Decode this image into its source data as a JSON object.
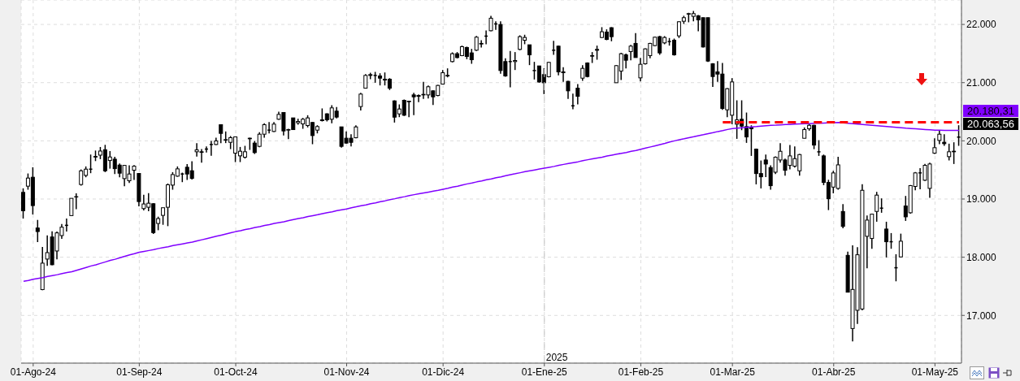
{
  "chart_data": {
    "type": "candlestick",
    "color": "#000000",
    "categories": [
      null,
      null,
      "01-Ago-24",
      null,
      null,
      null,
      null,
      null,
      null,
      null,
      null,
      null,
      null,
      null,
      null,
      null,
      null,
      null,
      null,
      null,
      null,
      null,
      null,
      null,
      "01-Sep-24",
      null,
      null,
      null,
      null,
      null,
      null,
      null,
      null,
      null,
      null,
      null,
      null,
      null,
      null,
      null,
      null,
      null,
      null,
      null,
      "01-Oct-24",
      null,
      null,
      null,
      null,
      null,
      null,
      null,
      null,
      null,
      null,
      null,
      null,
      null,
      null,
      null,
      null,
      null,
      null,
      null,
      null,
      null,
      null,
      "01-Nov-24",
      null,
      null,
      null,
      null,
      null,
      null,
      null,
      null,
      null,
      null,
      null,
      null,
      null,
      null,
      null,
      null,
      null,
      null,
      null,
      "01-Dic-24",
      null,
      null,
      null,
      null,
      null,
      null,
      null,
      null,
      null,
      null,
      null,
      null,
      null,
      null,
      null,
      null,
      null,
      null,
      null,
      null,
      "01-Ene-25",
      null,
      null,
      null,
      null,
      null,
      null,
      null,
      null,
      null,
      null,
      null,
      null,
      null,
      null,
      null,
      null,
      null,
      null,
      null,
      "01-Feb-25",
      null,
      null,
      null,
      null,
      null,
      null,
      null,
      null,
      null,
      null,
      null,
      null,
      null,
      null,
      null,
      null,
      null,
      null,
      "01-Mar-25",
      null,
      null,
      null,
      null,
      null,
      null,
      null,
      null,
      null,
      null,
      null,
      null,
      null,
      null,
      null,
      null,
      null,
      null,
      null,
      null,
      "01-Abr-25",
      null,
      null,
      null,
      null,
      null,
      null,
      null,
      null,
      null,
      null,
      null,
      null,
      null,
      null,
      null,
      null,
      null,
      null,
      null,
      null,
      "01-May-25",
      null,
      null,
      null,
      null,
      null
    ],
    "ohlc": [
      [
        19114,
        19184,
        18664,
        18799
      ],
      [
        19221,
        19439,
        19160,
        19360
      ],
      [
        19374,
        19546,
        18734,
        18887
      ],
      [
        18502,
        18641,
        18260,
        18441
      ],
      [
        17444,
        18177,
        17434,
        17898
      ],
      [
        17968,
        18376,
        17852,
        18079
      ],
      [
        18348,
        18446,
        17861,
        17871
      ],
      [
        18107,
        18441,
        17963,
        18418
      ],
      [
        18372,
        18571,
        18316,
        18516
      ],
      [
        18548,
        18664,
        18441,
        18548
      ],
      [
        18715,
        19012,
        18715,
        19012
      ],
      [
        19035,
        19096,
        18826,
        19040
      ],
      [
        19249,
        19508,
        19230,
        19485
      ],
      [
        19406,
        19560,
        19374,
        19513
      ],
      [
        19513,
        19764,
        19444,
        19513
      ],
      [
        19731,
        19833,
        19652,
        19722
      ],
      [
        19754,
        19894,
        19685,
        19824
      ],
      [
        19847,
        19931,
        19462,
        19485
      ],
      [
        19662,
        19824,
        19522,
        19722
      ],
      [
        19685,
        19727,
        19430,
        19522
      ],
      [
        19583,
        19611,
        19374,
        19444
      ],
      [
        19351,
        19583,
        19221,
        19578
      ],
      [
        19314,
        19578,
        19277,
        19430
      ],
      [
        19495,
        19583,
        19327,
        19564
      ],
      [
        19439,
        19439,
        18873,
        18956
      ],
      [
        18836,
        19072,
        18803,
        18915
      ],
      [
        18859,
        19100,
        18789,
        18928
      ],
      [
        18919,
        18928,
        18400,
        18423
      ],
      [
        18580,
        18697,
        18464,
        18664
      ],
      [
        18719,
        18850,
        18557,
        18850
      ],
      [
        18859,
        19267,
        18534,
        19244
      ],
      [
        19239,
        19462,
        19160,
        19420
      ],
      [
        19393,
        19560,
        19383,
        19518
      ],
      [
        19430,
        19453,
        19290,
        19430
      ],
      [
        19546,
        19601,
        19327,
        19430
      ],
      [
        19486,
        19649,
        19336,
        19355
      ],
      [
        19812,
        19961,
        19728,
        19844
      ],
      [
        19812,
        19858,
        19625,
        19802
      ],
      [
        19858,
        19905,
        19798,
        19858
      ],
      [
        19937,
        19998,
        19742,
        19937
      ],
      [
        19937,
        20054,
        19928,
        19998
      ],
      [
        20277,
        20277,
        19961,
        20128
      ],
      [
        20012,
        20161,
        19961,
        20021
      ],
      [
        19974,
        20082,
        19858,
        20054
      ],
      [
        19788,
        20068,
        19635,
        20068
      ],
      [
        19742,
        19895,
        19635,
        19821
      ],
      [
        19719,
        19914,
        19695,
        19812
      ],
      [
        20035,
        20054,
        19844,
        20045
      ],
      [
        19961,
        19998,
        19774,
        19798
      ],
      [
        19905,
        20147,
        19891,
        20114
      ],
      [
        20114,
        20300,
        20054,
        20277
      ],
      [
        20184,
        20324,
        20128,
        20184
      ],
      [
        20161,
        20324,
        20152,
        20287
      ],
      [
        20371,
        20501,
        20361,
        20454
      ],
      [
        20487,
        20487,
        20091,
        20170
      ],
      [
        20184,
        20207,
        20030,
        20193
      ],
      [
        20394,
        20394,
        20193,
        20193
      ],
      [
        20310,
        20380,
        20277,
        20333
      ],
      [
        20291,
        20394,
        20207,
        20371
      ],
      [
        20263,
        20440,
        20231,
        20394
      ],
      [
        20315,
        20324,
        19942,
        20091
      ],
      [
        20184,
        20268,
        20128,
        20245
      ],
      [
        20347,
        20557,
        20333,
        20361
      ],
      [
        20464,
        20473,
        20333,
        20361
      ],
      [
        20371,
        20612,
        20300,
        20566
      ],
      [
        20510,
        20580,
        20384,
        20408
      ],
      [
        20240,
        20240,
        19882,
        19905
      ],
      [
        20045,
        20161,
        19951,
        19961
      ],
      [
        20045,
        20114,
        19905,
        19974
      ],
      [
        20053,
        20267,
        20044,
        20239
      ],
      [
        20589,
        20826,
        20523,
        20803
      ],
      [
        20905,
        21147,
        20905,
        21124
      ],
      [
        21124,
        21170,
        21059,
        21138
      ],
      [
        21124,
        21185,
        20998,
        21124
      ],
      [
        21115,
        21161,
        20952,
        21077
      ],
      [
        21059,
        21175,
        20952,
        21045
      ],
      [
        21059,
        21077,
        20873,
        20905
      ],
      [
        20686,
        20696,
        20314,
        20407
      ],
      [
        20463,
        20626,
        20407,
        20547
      ],
      [
        20696,
        20710,
        20426,
        20440
      ],
      [
        20682,
        20686,
        20407,
        20672
      ],
      [
        20789,
        20826,
        20440,
        20756
      ],
      [
        20765,
        20798,
        20663,
        20779
      ],
      [
        20789,
        21012,
        20719,
        20798
      ],
      [
        20789,
        20952,
        20728,
        20929
      ],
      [
        20859,
        20868,
        20616,
        20756
      ],
      [
        20779,
        20961,
        20765,
        20952
      ],
      [
        20975,
        21217,
        20975,
        21170
      ],
      [
        21124,
        21245,
        21091,
        21115
      ],
      [
        21362,
        21520,
        21348,
        21497
      ],
      [
        21497,
        21525,
        21417,
        21431
      ],
      [
        21464,
        21636,
        21455,
        21618
      ],
      [
        21604,
        21618,
        21403,
        21450
      ],
      [
        21511,
        21580,
        21324,
        21394
      ],
      [
        21557,
        21804,
        21543,
        21781
      ],
      [
        21674,
        21729,
        21604,
        21664
      ],
      [
        21799,
        21897,
        21660,
        21799
      ],
      [
        21892,
        22149,
        21883,
        22107
      ],
      [
        22009,
        22055,
        21906,
        22009
      ],
      [
        21999,
        22055,
        21152,
        21208
      ],
      [
        21362,
        21417,
        21101,
        21115
      ],
      [
        21362,
        21543,
        20919,
        21362
      ],
      [
        21362,
        21525,
        21217,
        21380
      ],
      [
        21571,
        21813,
        21557,
        21790
      ],
      [
        21729,
        21823,
        21660,
        21776
      ],
      [
        21650,
        21650,
        21301,
        21478
      ],
      [
        21208,
        21357,
        21054,
        21208
      ],
      [
        21287,
        21287,
        20998,
        21012
      ],
      [
        21138,
        21245,
        20803,
        20998
      ],
      [
        21101,
        21357,
        21091,
        21348
      ],
      [
        21557,
        21720,
        21478,
        21557
      ],
      [
        21627,
        21636,
        21124,
        21185
      ],
      [
        21171,
        21264,
        21012,
        21185
      ],
      [
        21022,
        21031,
        20719,
        20859
      ],
      [
        20602,
        20812,
        20542,
        20602
      ],
      [
        20905,
        20975,
        20626,
        20765
      ],
      [
        21077,
        21301,
        21031,
        21245
      ],
      [
        21338,
        21348,
        21091,
        21105
      ],
      [
        21464,
        21525,
        21338,
        21455
      ],
      [
        21557,
        21636,
        21394,
        21571
      ],
      [
        21776,
        21953,
        21767,
        21874
      ],
      [
        21869,
        21916,
        21729,
        21743
      ],
      [
        21944,
        21953,
        21711,
        21790
      ],
      [
        20998,
        21301,
        20998,
        21292
      ],
      [
        21199,
        21511,
        21045,
        21497
      ],
      [
        21478,
        21497,
        21245,
        21385
      ],
      [
        21534,
        21650,
        21385,
        21627
      ],
      [
        21674,
        21851,
        21431,
        21431
      ],
      [
        21082,
        21427,
        21022,
        21315
      ],
      [
        21324,
        21590,
        21310,
        21580
      ],
      [
        21464,
        21683,
        21417,
        21674
      ],
      [
        21636,
        21790,
        21627,
        21781
      ],
      [
        21790,
        21804,
        21478,
        21511
      ],
      [
        21683,
        21799,
        21660,
        21776
      ],
      [
        21706,
        21767,
        21636,
        21706
      ],
      [
        21729,
        21757,
        21464,
        21478
      ],
      [
        21804,
        22055,
        21767,
        22046
      ],
      [
        22055,
        22149,
        22009,
        22116
      ],
      [
        22177,
        22200,
        22037,
        22186
      ],
      [
        22139,
        22232,
        22055,
        22186
      ],
      [
        22149,
        22163,
        21883,
        22079
      ],
      [
        22116,
        22116,
        21604,
        21613
      ],
      [
        22116,
        22116,
        21357,
        21371
      ],
      [
        21324,
        21334,
        20928,
        21105
      ],
      [
        21185,
        21371,
        21012,
        21147
      ],
      [
        21147,
        21338,
        20533,
        20556
      ],
      [
        20533,
        20905,
        20407,
        20896
      ],
      [
        20440,
        21077,
        20286,
        21012
      ],
      [
        20286,
        20696,
        20034,
        20360
      ],
      [
        20370,
        20696,
        20183,
        20253
      ],
      [
        20244,
        20486,
        19965,
        20067
      ],
      [
        20230,
        20267,
        19741,
        20207
      ],
      [
        19857,
        19867,
        19252,
        19438
      ],
      [
        19438,
        19662,
        19182,
        19382
      ],
      [
        19671,
        19764,
        19378,
        19601
      ],
      [
        19541,
        19578,
        19159,
        19229
      ],
      [
        19461,
        19732,
        19429,
        19718
      ],
      [
        19671,
        19960,
        19625,
        19820
      ],
      [
        19671,
        19694,
        19401,
        19494
      ],
      [
        19578,
        19927,
        19508,
        19741
      ],
      [
        19564,
        19904,
        19541,
        19694
      ],
      [
        19485,
        19774,
        19401,
        19764
      ],
      [
        20044,
        20230,
        20044,
        20193
      ],
      [
        20207,
        20286,
        20174,
        20267
      ],
      [
        20267,
        20276,
        19857,
        19927
      ],
      [
        19811,
        20011,
        19741,
        19811
      ],
      [
        19741,
        19764,
        19238,
        19285
      ],
      [
        19285,
        19331,
        18810,
        19005
      ],
      [
        19205,
        19485,
        19098,
        19448
      ],
      [
        19182,
        19727,
        19159,
        19587
      ],
      [
        18786,
        18912,
        18497,
        18530
      ],
      [
        18032,
        18097,
        17399,
        17399
      ],
      [
        16775,
        18205,
        16552,
        17446
      ],
      [
        17088,
        18173,
        16855,
        18042
      ],
      [
        17111,
        19253,
        17088,
        19150
      ],
      [
        18359,
        18717,
        17809,
        18638
      ],
      [
        18322,
        18750,
        18145,
        18740
      ],
      [
        18787,
        19123,
        18610,
        19067
      ],
      [
        18843,
        19011,
        18764,
        18843
      ],
      [
        18484,
        18610,
        17996,
        18266
      ],
      [
        18266,
        18415,
        18145,
        18266
      ],
      [
        17819,
        18051,
        17586,
        17819
      ],
      [
        18005,
        18405,
        17996,
        18275
      ],
      [
        18880,
        19053,
        18624,
        18694
      ],
      [
        18764,
        19239,
        18750,
        19230
      ],
      [
        19216,
        19463,
        19150,
        19449
      ],
      [
        19449,
        19532,
        19169,
        19449
      ],
      [
        19323,
        19602,
        19309,
        19579
      ],
      [
        19183,
        19626,
        19020,
        19602
      ],
      [
        19789,
        20045,
        19775,
        19882
      ],
      [
        20007,
        20184,
        19942,
        20114
      ],
      [
        19975,
        20114,
        19914,
        19951
      ],
      [
        19728,
        19951,
        19663,
        19812
      ],
      [
        19812,
        19975,
        19602,
        19821
      ],
      [
        20064,
        20268,
        19914,
        20064
      ]
    ],
    "series": [
      {
        "type": "line",
        "color": "#8000ff",
        "values": [
          17585,
          17600,
          17620,
          17635,
          17650,
          17670,
          17685,
          17700,
          17720,
          17735,
          17750,
          17775,
          17800,
          17825,
          17850,
          17870,
          17895,
          17920,
          17945,
          17965,
          17990,
          18015,
          18040,
          18060,
          18085,
          18100,
          18115,
          18130,
          18150,
          18165,
          18180,
          18200,
          18215,
          18230,
          18245,
          18260,
          18280,
          18300,
          18320,
          18340,
          18360,
          18380,
          18400,
          18420,
          18440,
          18455,
          18475,
          18490,
          18510,
          18525,
          18545,
          18560,
          18580,
          18595,
          18610,
          18630,
          18647,
          18665,
          18680,
          18700,
          18715,
          18730,
          18750,
          18765,
          18780,
          18800,
          18815,
          18830,
          18850,
          18866,
          18885,
          18900,
          18920,
          18935,
          18955,
          18970,
          18990,
          19005,
          19025,
          19040,
          19060,
          19075,
          19090,
          19105,
          19120,
          19135,
          19150,
          19168,
          19185,
          19205,
          19220,
          19240,
          19260,
          19275,
          19295,
          19310,
          19330,
          19345,
          19365,
          19380,
          19400,
          19420,
          19435,
          19452,
          19470,
          19485,
          19500,
          19515,
          19531,
          19545,
          19560,
          19580,
          19595,
          19610,
          19625,
          19640,
          19660,
          19675,
          19690,
          19705,
          19720,
          19740,
          19755,
          19770,
          19785,
          19800,
          19820,
          19834,
          19855,
          19875,
          19895,
          19915,
          19935,
          19955,
          19980,
          20000,
          20020,
          20035,
          20055,
          20070,
          20090,
          20105,
          20125,
          20140,
          20160,
          20175,
          20195,
          20210,
          20217,
          20225,
          20232,
          20240,
          20245,
          20252,
          20260,
          20267,
          20270,
          20275,
          20280,
          20282,
          20286,
          20290,
          20293,
          20296,
          20300,
          20303,
          20306,
          20309,
          20312,
          20315,
          20308,
          20301,
          20295,
          20288,
          20281,
          20275,
          20268,
          20261,
          20254,
          20246,
          20239,
          20232,
          20225,
          20217,
          20211,
          20206,
          20200,
          20195,
          20189,
          20184,
          20182,
          20181,
          20181,
          20180,
          20180
        ]
      },
      {
        "type": "line",
        "color": "#ff0000",
        "line_style": "dashed",
        "values": [
          null,
          null,
          null,
          null,
          null,
          null,
          null,
          null,
          null,
          null,
          null,
          null,
          null,
          null,
          null,
          null,
          null,
          null,
          null,
          null,
          null,
          null,
          null,
          null,
          null,
          null,
          null,
          null,
          null,
          null,
          null,
          null,
          null,
          null,
          null,
          null,
          null,
          null,
          null,
          null,
          null,
          null,
          null,
          null,
          null,
          null,
          null,
          null,
          null,
          null,
          null,
          null,
          null,
          null,
          null,
          null,
          null,
          null,
          null,
          null,
          null,
          null,
          null,
          null,
          null,
          null,
          null,
          null,
          null,
          null,
          null,
          null,
          null,
          null,
          null,
          null,
          null,
          null,
          null,
          null,
          null,
          null,
          null,
          null,
          null,
          null,
          null,
          null,
          null,
          null,
          null,
          null,
          null,
          null,
          null,
          null,
          null,
          null,
          null,
          null,
          null,
          null,
          null,
          null,
          null,
          null,
          null,
          null,
          null,
          null,
          null,
          null,
          null,
          null,
          null,
          null,
          null,
          null,
          null,
          null,
          null,
          null,
          null,
          null,
          null,
          null,
          null,
          null,
          null,
          null,
          null,
          null,
          null,
          null,
          null,
          null,
          null,
          null,
          null,
          null,
          null,
          null,
          null,
          null,
          null,
          20320,
          20320,
          20320,
          20320,
          20320,
          20320,
          20320,
          20320,
          20320,
          20320,
          20320,
          20320,
          20320,
          20320,
          20320,
          20320,
          20320,
          20320,
          20320,
          20320,
          20320,
          20320,
          20320,
          20320,
          20320,
          20320,
          20320,
          20320,
          20320,
          20320,
          20320,
          20320,
          20320,
          20320,
          20320,
          20320,
          20320,
          20320,
          20320,
          20320,
          20320,
          20320,
          20320,
          20320,
          20320,
          20320,
          20320,
          20320,
          20320,
          20320
        ]
      }
    ],
    "ylim": [
      16180,
      22420
    ],
    "yticks": [
      {
        "value": 17000,
        "label": "17.000"
      },
      {
        "value": 18000,
        "label": "18.000"
      },
      {
        "value": 19000,
        "label": "19.000"
      },
      {
        "value": 20000,
        "label": "20.000"
      },
      {
        "value": 21000,
        "label": "21.000"
      },
      {
        "value": 22000,
        "label": "22.000"
      }
    ],
    "grid": true,
    "ref_lines": [
      {
        "axis": "x",
        "value": "01-Ene-25",
        "label": "2025",
        "color": "#c8c8c8",
        "line_style": "dashed"
      }
    ],
    "annotations": [
      "20.180,31",
      "20.063,56"
    ]
  }
}
